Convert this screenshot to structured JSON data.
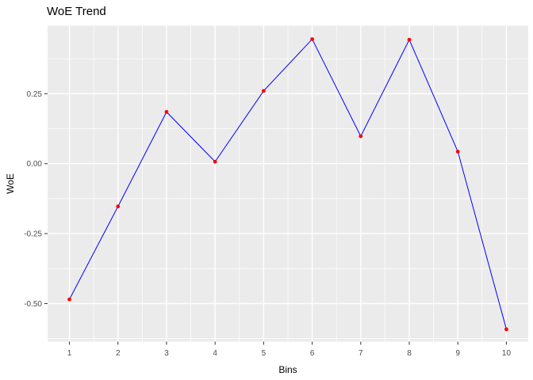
{
  "chart_data": {
    "type": "line",
    "title": "WoE Trend",
    "xlabel": "Bins",
    "ylabel": "WoE",
    "x": [
      1,
      2,
      3,
      4,
      5,
      6,
      7,
      8,
      9,
      10
    ],
    "y": [
      -0.485,
      -0.153,
      0.185,
      0.007,
      0.26,
      0.445,
      0.098,
      0.443,
      0.043,
      -0.592
    ],
    "x_ticks": [
      {
        "v": 1,
        "label": "1"
      },
      {
        "v": 2,
        "label": "2"
      },
      {
        "v": 3,
        "label": "3"
      },
      {
        "v": 4,
        "label": "4"
      },
      {
        "v": 5,
        "label": "5"
      },
      {
        "v": 6,
        "label": "6"
      },
      {
        "v": 7,
        "label": "7"
      },
      {
        "v": 8,
        "label": "8"
      },
      {
        "v": 9,
        "label": "9"
      },
      {
        "v": 10,
        "label": "10"
      }
    ],
    "y_ticks": [
      {
        "v": 0.25,
        "label": "0.25"
      },
      {
        "v": 0.0,
        "label": "0.00"
      },
      {
        "v": -0.25,
        "label": "-0.25"
      },
      {
        "v": -0.5,
        "label": "-0.50"
      }
    ],
    "x_minor": [
      1.5,
      2.5,
      3.5,
      4.5,
      5.5,
      6.5,
      7.5,
      8.5,
      9.5
    ],
    "y_minor": [
      0.375,
      0.125,
      -0.125,
      -0.375,
      -0.625
    ],
    "xlim": [
      0.55,
      10.45
    ],
    "ylim": [
      -0.636,
      0.493
    ],
    "grid": true,
    "legend": "none",
    "colors": {
      "line": "#0000FF",
      "point": "#FF0000",
      "panel_bg": "#EBEBEB",
      "grid": "#FFFFFF",
      "tick_mark": "#333333",
      "tick_label": "#4D4D4D",
      "text": "#000000",
      "background": "#FFFFFF"
    }
  }
}
